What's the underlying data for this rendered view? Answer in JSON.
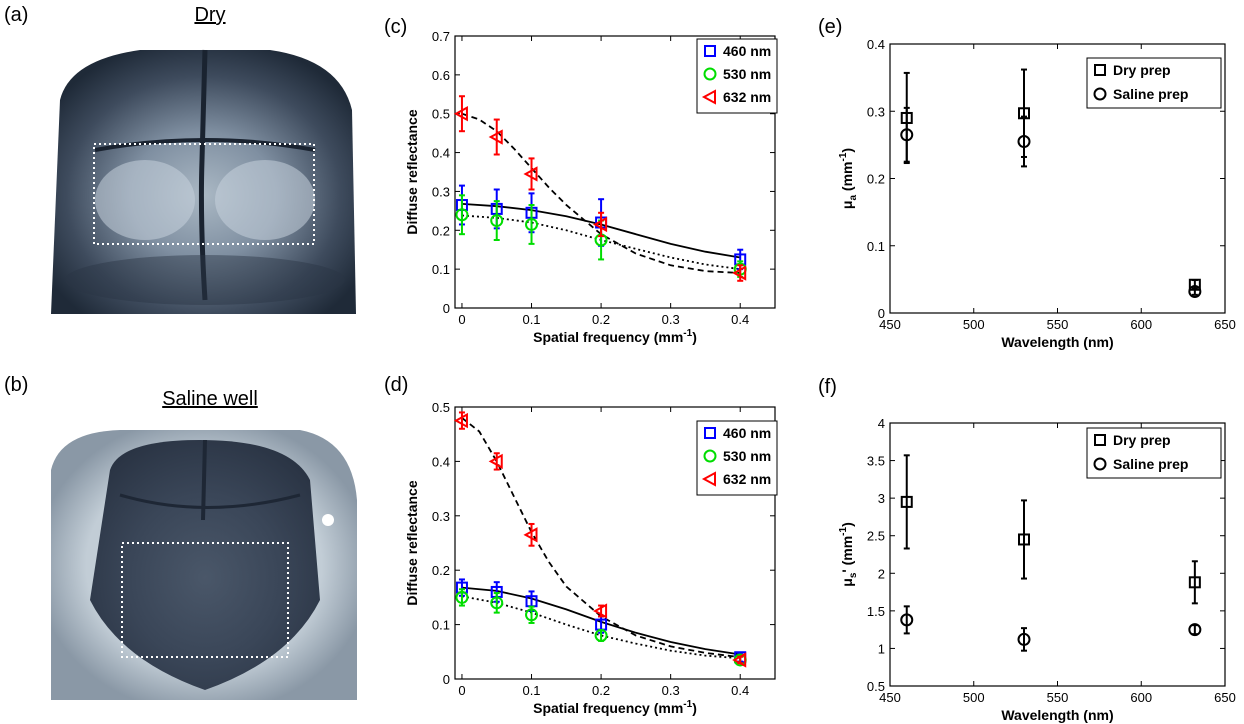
{
  "panels": [
    {
      "id": "a",
      "label": "(a)",
      "title": "Dry"
    },
    {
      "id": "b",
      "label": "(b)",
      "title": "Saline well"
    },
    {
      "id": "c",
      "label": "(c)"
    },
    {
      "id": "d",
      "label": "(d)"
    },
    {
      "id": "e",
      "label": "(e)"
    },
    {
      "id": "f",
      "label": "(f)"
    }
  ],
  "colors": {
    "c460": "#0000ff",
    "c530": "#00dd00",
    "c632": "#ff0000",
    "ink": "#000000"
  },
  "chart_data": [
    {
      "panel": "c",
      "type": "scatter",
      "xlabel": "Spatial frequency (mm",
      "xlabel_sup": "-1",
      "xlabel_end": ")",
      "ylabel": "Diffuse reflectance",
      "xlim": [
        -0.01,
        0.45
      ],
      "ylim": [
        0,
        0.7
      ],
      "xticks": [
        0,
        0.1,
        0.2,
        0.3,
        0.4
      ],
      "xtick_labels": [
        "0",
        "0.1",
        "0.2",
        "0.3",
        "0.4"
      ],
      "yticks": [
        0,
        0.1,
        0.2,
        0.3,
        0.4,
        0.5,
        0.6,
        0.7
      ],
      "ytick_labels": [
        "0",
        "0.1",
        "0.2",
        "0.3",
        "0.4",
        "0.5",
        "0.6",
        "0.7"
      ],
      "legend": "top-right",
      "series": [
        {
          "name": "460 nm",
          "marker": "square",
          "color": "#0000ff",
          "x": [
            0,
            0.05,
            0.1,
            0.2,
            0.4
          ],
          "y": [
            0.265,
            0.255,
            0.245,
            0.22,
            0.125
          ],
          "err": [
            0.05,
            0.05,
            0.05,
            0.06,
            0.025
          ]
        },
        {
          "name": "530 nm",
          "marker": "circle",
          "color": "#00dd00",
          "x": [
            0,
            0.05,
            0.1,
            0.2,
            0.4
          ],
          "y": [
            0.24,
            0.225,
            0.215,
            0.175,
            0.1
          ],
          "err": [
            0.05,
            0.05,
            0.05,
            0.05,
            0.02
          ]
        },
        {
          "name": "632 nm",
          "marker": "triangle-left",
          "color": "#ff0000",
          "x": [
            0,
            0.05,
            0.1,
            0.2,
            0.4
          ],
          "y": [
            0.5,
            0.44,
            0.345,
            0.215,
            0.09
          ],
          "err": [
            0.045,
            0.045,
            0.04,
            0.03,
            0.02
          ]
        }
      ],
      "fits": [
        {
          "style": "solid",
          "x": [
            0,
            0.05,
            0.1,
            0.15,
            0.2,
            0.25,
            0.3,
            0.35,
            0.4
          ],
          "y": [
            0.268,
            0.262,
            0.252,
            0.236,
            0.215,
            0.19,
            0.165,
            0.145,
            0.13
          ]
        },
        {
          "style": "dotted",
          "x": [
            0,
            0.05,
            0.1,
            0.15,
            0.2,
            0.25,
            0.3,
            0.35,
            0.4
          ],
          "y": [
            0.238,
            0.232,
            0.22,
            0.2,
            0.175,
            0.152,
            0.13,
            0.112,
            0.1
          ]
        },
        {
          "style": "dashed",
          "x": [
            0,
            0.025,
            0.05,
            0.075,
            0.1,
            0.125,
            0.15,
            0.2,
            0.25,
            0.3,
            0.35,
            0.4
          ],
          "y": [
            0.5,
            0.485,
            0.455,
            0.41,
            0.36,
            0.31,
            0.265,
            0.19,
            0.14,
            0.11,
            0.095,
            0.09
          ]
        }
      ]
    },
    {
      "panel": "d",
      "type": "scatter",
      "xlabel": "Spatial frequency (mm",
      "xlabel_sup": "-1",
      "xlabel_end": ")",
      "ylabel": "Diffuse reflectance",
      "xlim": [
        -0.01,
        0.45
      ],
      "ylim": [
        0,
        0.5
      ],
      "xticks": [
        0,
        0.1,
        0.2,
        0.3,
        0.4
      ],
      "xtick_labels": [
        "0",
        "0.1",
        "0.2",
        "0.3",
        "0.4"
      ],
      "yticks": [
        0,
        0.1,
        0.2,
        0.3,
        0.4,
        0.5
      ],
      "ytick_labels": [
        "0",
        "0.1",
        "0.2",
        "0.3",
        "0.4",
        "0.5"
      ],
      "legend": "top-right",
      "series": [
        {
          "name": "460 nm",
          "marker": "square",
          "color": "#0000ff",
          "x": [
            0,
            0.05,
            0.1,
            0.2,
            0.4
          ],
          "y": [
            0.168,
            0.16,
            0.143,
            0.1,
            0.04
          ],
          "err": [
            0.015,
            0.018,
            0.018,
            0.015,
            0.008
          ]
        },
        {
          "name": "530 nm",
          "marker": "circle",
          "color": "#00dd00",
          "x": [
            0,
            0.05,
            0.1,
            0.2,
            0.4
          ],
          "y": [
            0.15,
            0.14,
            0.118,
            0.08,
            0.035
          ],
          "err": [
            0.015,
            0.018,
            0.015,
            0.01,
            0.006
          ]
        },
        {
          "name": "632 nm",
          "marker": "triangle-left",
          "color": "#ff0000",
          "x": [
            0,
            0.05,
            0.1,
            0.2,
            0.4
          ],
          "y": [
            0.475,
            0.4,
            0.265,
            0.125,
            0.035
          ],
          "err": [
            0.015,
            0.015,
            0.02,
            0.01,
            0.006
          ]
        }
      ],
      "fits": [
        {
          "style": "solid",
          "x": [
            0,
            0.05,
            0.1,
            0.15,
            0.2,
            0.25,
            0.3,
            0.35,
            0.4
          ],
          "y": [
            0.168,
            0.162,
            0.148,
            0.128,
            0.105,
            0.085,
            0.068,
            0.055,
            0.045
          ]
        },
        {
          "style": "dotted",
          "x": [
            0,
            0.05,
            0.1,
            0.15,
            0.2,
            0.25,
            0.3,
            0.35,
            0.4
          ],
          "y": [
            0.152,
            0.14,
            0.122,
            0.1,
            0.08,
            0.065,
            0.052,
            0.043,
            0.038
          ]
        },
        {
          "style": "dashed",
          "x": [
            0,
            0.025,
            0.05,
            0.075,
            0.1,
            0.125,
            0.15,
            0.2,
            0.25,
            0.3,
            0.35,
            0.4
          ],
          "y": [
            0.48,
            0.455,
            0.4,
            0.335,
            0.27,
            0.215,
            0.17,
            0.115,
            0.08,
            0.06,
            0.048,
            0.04
          ]
        }
      ]
    },
    {
      "panel": "e",
      "type": "scatter",
      "xlabel": "Wavelength (nm)",
      "ylabel": "μ",
      "ylabel_sub": "a",
      "ylabel_rest": " (mm",
      "ylabel_sup": "-1",
      "ylabel_end": ")",
      "xlim": [
        450,
        650
      ],
      "ylim": [
        0,
        0.4
      ],
      "xticks": [
        450,
        500,
        550,
        600,
        650
      ],
      "xtick_labels": [
        "450",
        "500",
        "550",
        "600",
        "650"
      ],
      "yticks": [
        0,
        0.1,
        0.2,
        0.3,
        0.4
      ],
      "ytick_labels": [
        "0",
        "0.1",
        "0.2",
        "0.3",
        "0.4"
      ],
      "legend": "top-right",
      "series": [
        {
          "name": "Dry prep",
          "marker": "square",
          "color": "#000000",
          "x": [
            460,
            530,
            632
          ],
          "y": [
            0.29,
            0.297,
            0.042
          ],
          "err": [
            0.067,
            0.065,
            0.007
          ]
        },
        {
          "name": "Saline prep",
          "marker": "circle",
          "color": "#000000",
          "x": [
            460,
            530,
            632
          ],
          "y": [
            0.265,
            0.255,
            0.032
          ],
          "err": [
            0.04,
            0.037,
            0.005
          ]
        }
      ]
    },
    {
      "panel": "f",
      "type": "scatter",
      "xlabel": "Wavelength (nm)",
      "ylabel": "μ",
      "ylabel_sub": "s",
      "ylabel_rest": "' (mm",
      "ylabel_sup": "-1",
      "ylabel_end": ")",
      "xlim": [
        450,
        650
      ],
      "ylim": [
        0.5,
        4
      ],
      "xticks": [
        450,
        500,
        550,
        600,
        650
      ],
      "xtick_labels": [
        "450",
        "500",
        "550",
        "600",
        "650"
      ],
      "yticks": [
        0.5,
        1,
        1.5,
        2,
        2.5,
        3,
        3.5,
        4
      ],
      "ytick_labels": [
        "0.5",
        "1",
        "1.5",
        "2",
        "2.5",
        "3",
        "3.5",
        "4"
      ],
      "legend": "top-right",
      "series": [
        {
          "name": "Dry prep",
          "marker": "square",
          "color": "#000000",
          "x": [
            460,
            530,
            632
          ],
          "y": [
            2.95,
            2.45,
            1.88
          ],
          "err": [
            0.62,
            0.52,
            0.28
          ]
        },
        {
          "name": "Saline prep",
          "marker": "circle",
          "color": "#000000",
          "x": [
            460,
            530,
            632
          ],
          "y": [
            1.38,
            1.12,
            1.25
          ],
          "err": [
            0.18,
            0.15,
            0.06
          ]
        }
      ]
    }
  ]
}
